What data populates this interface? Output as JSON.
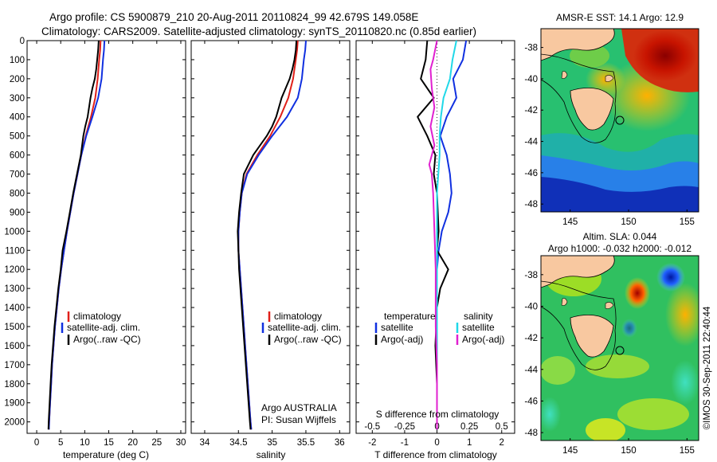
{
  "header": {
    "line1": "Argo profile: CS 5900879_210 20-Aug-2011 20110824_99 42.679S 149.058E",
    "line2": "Climatology: CARS2009. Satellite-adjusted climatology: synTS_20110820.nc (0.85d earlier)"
  },
  "colors": {
    "climatology": "#e0201a",
    "satellite": "#1030e0",
    "argo": "#000000",
    "sal_satellite": "#20d8e8",
    "sal_argo": "#e020d0"
  },
  "chart_data": [
    {
      "type": "line",
      "name": "temperature",
      "xlabel": "temperature (deg C)",
      "ylabel": "",
      "xlim": [
        -2,
        31
      ],
      "ylim": [
        2060,
        0
      ],
      "xticks": [
        0,
        5,
        10,
        15,
        20,
        25,
        30
      ],
      "yticks": [
        0,
        100,
        200,
        300,
        400,
        500,
        600,
        700,
        800,
        900,
        1000,
        1100,
        1200,
        1300,
        1400,
        1500,
        1600,
        1700,
        1800,
        1900,
        2000
      ],
      "legend": [
        "climatology",
        "satellite-adj. clim.",
        "Argo(..raw -QC)"
      ],
      "series": [
        {
          "name": "climatology",
          "color": "#e0201a",
          "points": [
            [
              13.3,
              0
            ],
            [
              13.2,
              50
            ],
            [
              13.0,
              100
            ],
            [
              12.7,
              200
            ],
            [
              12.2,
              300
            ],
            [
              11.3,
              400
            ],
            [
              10.2,
              500
            ],
            [
              9.3,
              600
            ],
            [
              8.5,
              700
            ],
            [
              7.7,
              800
            ],
            [
              7.0,
              900
            ],
            [
              6.3,
              1000
            ],
            [
              5.7,
              1100
            ],
            [
              5.1,
              1200
            ],
            [
              4.6,
              1300
            ],
            [
              4.2,
              1400
            ],
            [
              3.8,
              1500
            ],
            [
              3.5,
              1600
            ],
            [
              3.2,
              1700
            ],
            [
              3.0,
              1800
            ],
            [
              2.8,
              1900
            ],
            [
              2.6,
              2000
            ],
            [
              2.55,
              2040
            ]
          ]
        },
        {
          "name": "satellite-adj. clim.",
          "color": "#1030e0",
          "points": [
            [
              14.1,
              0
            ],
            [
              14.0,
              50
            ],
            [
              13.8,
              100
            ],
            [
              13.5,
              200
            ],
            [
              12.8,
              300
            ],
            [
              11.6,
              400
            ],
            [
              10.3,
              500
            ],
            [
              9.3,
              600
            ],
            [
              8.5,
              700
            ],
            [
              7.7,
              800
            ],
            [
              7.0,
              900
            ],
            [
              6.3,
              1000
            ],
            [
              5.7,
              1100
            ],
            [
              5.1,
              1200
            ],
            [
              4.6,
              1300
            ],
            [
              4.2,
              1400
            ],
            [
              3.8,
              1500
            ],
            [
              3.5,
              1600
            ],
            [
              3.2,
              1700
            ],
            [
              3.0,
              1800
            ],
            [
              2.8,
              1900
            ],
            [
              2.6,
              2000
            ],
            [
              2.55,
              2040
            ]
          ]
        },
        {
          "name": "Argo(..raw -QC)",
          "color": "#000000",
          "points": [
            [
              12.9,
              0
            ],
            [
              12.8,
              50
            ],
            [
              12.6,
              100
            ],
            [
              12.4,
              150
            ],
            [
              12.1,
              200
            ],
            [
              11.6,
              250
            ],
            [
              11.2,
              300
            ],
            [
              10.9,
              350
            ],
            [
              10.6,
              400
            ],
            [
              10.1,
              450
            ],
            [
              9.7,
              500
            ],
            [
              9.2,
              600
            ],
            [
              8.4,
              700
            ],
            [
              7.6,
              800
            ],
            [
              6.9,
              900
            ],
            [
              6.2,
              1000
            ],
            [
              5.4,
              1100
            ],
            [
              5.0,
              1200
            ],
            [
              4.5,
              1300
            ],
            [
              4.1,
              1400
            ],
            [
              3.7,
              1500
            ],
            [
              3.4,
              1600
            ],
            [
              3.1,
              1700
            ],
            [
              2.9,
              1800
            ],
            [
              2.7,
              1900
            ],
            [
              2.5,
              2000
            ],
            [
              2.45,
              2040
            ]
          ]
        }
      ]
    },
    {
      "type": "line",
      "name": "salinity",
      "xlabel": "salinity",
      "xlim": [
        33.8,
        36.15
      ],
      "ylim": [
        2060,
        0
      ],
      "xticks": [
        34,
        34.5,
        35,
        35.5,
        36
      ],
      "xticklabels": [
        "34",
        "34.5",
        "35",
        "35.5",
        "36"
      ],
      "legend": [
        "climatology",
        "satellite-adj. clim.",
        "Argo(..raw -QC)"
      ],
      "annotation": [
        "Argo AUSTRALIA",
        "PI: Susan Wijffels"
      ],
      "series": [
        {
          "name": "climatology",
          "color": "#e0201a",
          "points": [
            [
              35.38,
              0
            ],
            [
              35.37,
              50
            ],
            [
              35.35,
              100
            ],
            [
              35.31,
              200
            ],
            [
              35.24,
              300
            ],
            [
              35.12,
              400
            ],
            [
              34.97,
              500
            ],
            [
              34.78,
              600
            ],
            [
              34.62,
              700
            ],
            [
              34.55,
              800
            ],
            [
              34.52,
              900
            ],
            [
              34.5,
              1000
            ],
            [
              34.5,
              1100
            ],
            [
              34.52,
              1200
            ],
            [
              34.54,
              1300
            ],
            [
              34.56,
              1400
            ],
            [
              34.58,
              1500
            ],
            [
              34.6,
              1600
            ],
            [
              34.62,
              1700
            ],
            [
              34.64,
              1800
            ],
            [
              34.66,
              1900
            ],
            [
              34.68,
              2000
            ],
            [
              34.69,
              2040
            ]
          ]
        },
        {
          "name": "satellite-adj. clim.",
          "color": "#1030e0",
          "points": [
            [
              35.5,
              0
            ],
            [
              35.49,
              50
            ],
            [
              35.47,
              100
            ],
            [
              35.44,
              200
            ],
            [
              35.38,
              300
            ],
            [
              35.22,
              400
            ],
            [
              35.0,
              500
            ],
            [
              34.8,
              600
            ],
            [
              34.63,
              700
            ],
            [
              34.55,
              800
            ],
            [
              34.52,
              900
            ],
            [
              34.5,
              1000
            ],
            [
              34.5,
              1100
            ],
            [
              34.52,
              1200
            ],
            [
              34.54,
              1300
            ],
            [
              34.56,
              1400
            ],
            [
              34.58,
              1500
            ],
            [
              34.6,
              1600
            ],
            [
              34.62,
              1700
            ],
            [
              34.64,
              1800
            ],
            [
              34.66,
              1900
            ],
            [
              34.68,
              2000
            ],
            [
              34.69,
              2040
            ]
          ]
        },
        {
          "name": "Argo(..raw -QC)",
          "color": "#000000",
          "points": [
            [
              35.36,
              0
            ],
            [
              35.35,
              50
            ],
            [
              35.33,
              100
            ],
            [
              35.3,
              150
            ],
            [
              35.26,
              200
            ],
            [
              35.2,
              250
            ],
            [
              35.14,
              300
            ],
            [
              35.1,
              350
            ],
            [
              35.06,
              400
            ],
            [
              35.0,
              450
            ],
            [
              34.92,
              500
            ],
            [
              34.72,
              600
            ],
            [
              34.58,
              700
            ],
            [
              34.54,
              800
            ],
            [
              34.51,
              900
            ],
            [
              34.49,
              1000
            ],
            [
              34.5,
              1100
            ],
            [
              34.51,
              1200
            ],
            [
              34.53,
              1300
            ],
            [
              34.55,
              1400
            ],
            [
              34.57,
              1500
            ],
            [
              34.59,
              1600
            ],
            [
              34.61,
              1700
            ],
            [
              34.63,
              1800
            ],
            [
              34.65,
              1900
            ],
            [
              34.67,
              2000
            ],
            [
              34.68,
              2040
            ]
          ]
        }
      ]
    },
    {
      "type": "line",
      "name": "difference",
      "xlabel": "T difference from climatology",
      "x2label": "S difference from climatology",
      "xlim": [
        -2.5,
        2.4
      ],
      "x2lim": [
        -0.625,
        0.6
      ],
      "ylim": [
        2060,
        0
      ],
      "xticks": [
        -2,
        -1,
        0,
        1,
        2
      ],
      "x2ticks": [
        -0.5,
        -0.25,
        0,
        0.25,
        0.5
      ],
      "x2ticklabels": [
        "-0.5",
        "-0.25",
        "0",
        "0.25",
        "0.5"
      ],
      "legend_left": {
        "title": "temperature",
        "items": [
          "satellite",
          "Argo(-adj)"
        ]
      },
      "legend_right": {
        "title": "salinity",
        "items": [
          "satellite",
          "Argo(-adj)"
        ]
      },
      "series": [
        {
          "name": "satellite",
          "quantity": "temperature",
          "color": "#1030e0",
          "points": [
            [
              0.9,
              0
            ],
            [
              0.8,
              100
            ],
            [
              0.5,
              200
            ],
            [
              0.6,
              300
            ],
            [
              0.3,
              400
            ],
            [
              0.1,
              500
            ],
            [
              0.3,
              600
            ],
            [
              0.4,
              700
            ],
            [
              0.45,
              800
            ],
            [
              0.35,
              900
            ],
            [
              0.15,
              1000
            ],
            [
              0.05,
              1100
            ],
            [
              0.0,
              1200
            ],
            [
              0.0,
              2040
            ]
          ]
        },
        {
          "name": "Argo(-adj)",
          "quantity": "temperature",
          "color": "#000000",
          "points": [
            [
              -0.3,
              0
            ],
            [
              -0.35,
              100
            ],
            [
              -0.5,
              200
            ],
            [
              -0.1,
              300
            ],
            [
              -0.6,
              400
            ],
            [
              -0.3,
              500
            ],
            [
              -0.05,
              600
            ],
            [
              -0.1,
              700
            ],
            [
              0.0,
              800
            ],
            [
              0.05,
              1000
            ],
            [
              0.0,
              1100
            ],
            [
              0.35,
              1200
            ],
            [
              0.1,
              1300
            ],
            [
              0.0,
              1400
            ],
            [
              -0.05,
              1600
            ],
            [
              0.0,
              1800
            ],
            [
              0.0,
              2040
            ]
          ]
        },
        {
          "name": "satellite",
          "quantity": "salinity",
          "color": "#20d8e8",
          "points": [
            [
              0.15,
              0
            ],
            [
              0.12,
              100
            ],
            [
              0.1,
              200
            ],
            [
              0.05,
              300
            ],
            [
              0.03,
              400
            ],
            [
              0.02,
              500
            ],
            [
              0.02,
              600
            ],
            [
              0.01,
              700
            ],
            [
              0.0,
              800
            ],
            [
              0.0,
              2040
            ]
          ]
        },
        {
          "name": "Argo(-adj)",
          "quantity": "salinity",
          "color": "#e020d0",
          "points": [
            [
              0.0,
              0
            ],
            [
              -0.03,
              100
            ],
            [
              -0.05,
              150
            ],
            [
              -0.04,
              250
            ],
            [
              -0.02,
              350
            ],
            [
              -0.05,
              450
            ],
            [
              -0.02,
              550
            ],
            [
              -0.06,
              650
            ],
            [
              -0.04,
              700
            ],
            [
              -0.03,
              800
            ],
            [
              -0.02,
              1000
            ],
            [
              -0.01,
              1200
            ],
            [
              -0.01,
              1500
            ],
            [
              0.0,
              1700
            ],
            [
              0.0,
              2040
            ]
          ]
        }
      ]
    },
    {
      "type": "heatmap",
      "name": "sst-map",
      "title": "AMSR-E SST: 14.1  Argo: 12.9",
      "xlim": [
        142.5,
        156
      ],
      "ylim": [
        -48.5,
        -36.8
      ],
      "xticks": [
        145,
        150,
        155
      ],
      "yticks": [
        -38,
        -40,
        -42,
        -44,
        -46,
        -48
      ],
      "float_position": {
        "lon": 149.058,
        "lat": -42.679
      }
    },
    {
      "type": "heatmap",
      "name": "sla-map",
      "title_lines": [
        "Altim. SLA: 0.044",
        "Argo h1000: -0.032 h2000: -0.012"
      ],
      "xlim": [
        142.5,
        156
      ],
      "ylim": [
        -48.5,
        -36.8
      ],
      "xticks": [
        145,
        150,
        155
      ],
      "yticks": [
        -38,
        -40,
        -42,
        -44,
        -46,
        -48
      ],
      "float_position": {
        "lon": 149.058,
        "lat": -42.679
      }
    }
  ],
  "footer": {
    "credit": "©IMOS 30-Sep-2011 22:40:44"
  }
}
